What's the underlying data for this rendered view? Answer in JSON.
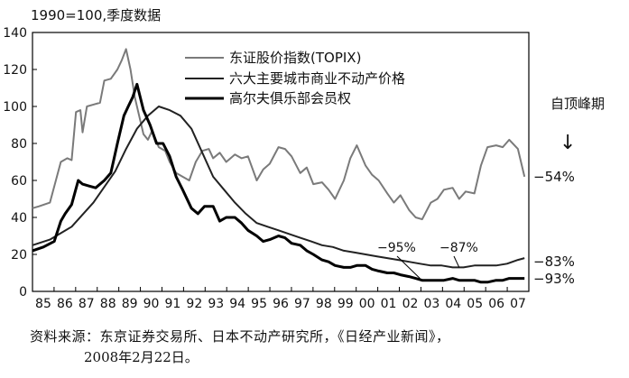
{
  "chart_data": {
    "type": "line",
    "title": "1990=100,季度数据",
    "xlabel": "",
    "ylabel": "",
    "x": [
      1984.7,
      1985.0,
      1985.5,
      1986.0,
      1986.3,
      1986.5,
      1986.7,
      1986.9,
      1987.0,
      1987.2,
      1987.5,
      1987.8,
      1988.0,
      1988.3,
      1988.6,
      1988.8,
      1989.0,
      1989.2,
      1989.4,
      1989.6,
      1989.8,
      1990.0,
      1990.2,
      1990.5,
      1990.8,
      1991.0,
      1991.3,
      1991.6,
      1991.9,
      1992.2,
      1992.5,
      1992.8,
      1993.0,
      1993.3,
      1993.6,
      1994.0,
      1994.3,
      1994.6,
      1995.0,
      1995.3,
      1995.6,
      1996.0,
      1996.3,
      1996.6,
      1997.0,
      1997.3,
      1997.6,
      1998.0,
      1998.3,
      1998.6,
      1999.0,
      1999.3,
      1999.6,
      2000.0,
      2000.3,
      2000.6,
      2001.0,
      2001.3,
      2001.6,
      2002.0,
      2002.3,
      2002.6,
      2003.0,
      2003.3,
      2003.6,
      2004.0,
      2004.3,
      2004.6,
      2005.0,
      2005.3,
      2005.6,
      2006.0,
      2006.3,
      2006.6,
      2007.0,
      2007.3
    ],
    "ylim": [
      0,
      140
    ],
    "xlim": [
      1984.7,
      2007.5
    ],
    "yticks": [
      "0",
      "20",
      "40",
      "60",
      "80",
      "100",
      "120",
      "140"
    ],
    "xticks": [
      "85",
      "86",
      "87",
      "88",
      "89",
      "90",
      "91",
      "92",
      "93",
      "94",
      "95",
      "96",
      "97",
      "98",
      "99",
      "00",
      "01",
      "02",
      "03",
      "04",
      "05",
      "06",
      "07"
    ],
    "series": [
      {
        "name": "东证股价指数(TOPIX)",
        "color": "#7a7a7a",
        "width": 2,
        "x": [
          1984.7,
          1985.0,
          1985.5,
          1986.0,
          1986.3,
          1986.5,
          1986.7,
          1986.9,
          1987.0,
          1987.2,
          1987.5,
          1987.8,
          1988.0,
          1988.3,
          1988.6,
          1988.8,
          1989.0,
          1989.2,
          1989.4,
          1989.6,
          1989.8,
          1990.0,
          1990.2,
          1990.5,
          1990.8,
          1991.0,
          1991.3,
          1991.6,
          1991.9,
          1992.2,
          1992.5,
          1992.8,
          1993.0,
          1993.3,
          1993.6,
          1994.0,
          1994.3,
          1994.6,
          1995.0,
          1995.3,
          1995.6,
          1996.0,
          1996.3,
          1996.6,
          1997.0,
          1997.3,
          1997.6,
          1998.0,
          1998.3,
          1998.6,
          1999.0,
          1999.3,
          1999.6,
          2000.0,
          2000.3,
          2000.6,
          2001.0,
          2001.3,
          2001.6,
          2002.0,
          2002.3,
          2002.6,
          2003.0,
          2003.3,
          2003.6,
          2004.0,
          2004.3,
          2004.6,
          2005.0,
          2005.3,
          2005.6,
          2006.0,
          2006.3,
          2006.6,
          2007.0,
          2007.3
        ],
        "values": [
          45,
          46,
          48,
          70,
          72,
          71,
          97,
          98,
          86,
          100,
          101,
          102,
          114,
          115,
          120,
          125,
          131,
          120,
          105,
          95,
          85,
          82,
          87,
          78,
          76,
          70,
          64,
          62,
          60,
          70,
          76,
          77,
          72,
          75,
          70,
          74,
          72,
          73,
          60,
          66,
          69,
          78,
          77,
          73,
          64,
          67,
          58,
          59,
          55,
          50,
          60,
          72,
          79,
          68,
          63,
          60,
          53,
          48,
          52,
          44,
          40,
          39,
          48,
          50,
          55,
          56,
          50,
          54,
          53,
          68,
          78,
          79,
          78,
          82,
          77,
          62
        ]
      },
      {
        "name": "六大主要城市商业不动产价格",
        "color": "#222222",
        "width": 2,
        "x": [
          1984.7,
          1985.5,
          1986.5,
          1987.5,
          1988.5,
          1989.0,
          1989.5,
          1990.0,
          1990.5,
          1991.0,
          1991.5,
          1992.0,
          1992.5,
          1993.0,
          1993.5,
          1994.0,
          1994.5,
          1995.0,
          1995.5,
          1996.0,
          1996.5,
          1997.0,
          1997.5,
          1998.0,
          1998.5,
          1999.0,
          1999.5,
          2000.0,
          2000.5,
          2001.0,
          2001.5,
          2002.0,
          2002.5,
          2003.0,
          2003.5,
          2004.0,
          2004.5,
          2005.0,
          2005.5,
          2006.0,
          2006.5,
          2007.0,
          2007.3
        ],
        "values": [
          25,
          28,
          35,
          48,
          65,
          77,
          88,
          95,
          100,
          98,
          95,
          88,
          75,
          62,
          55,
          48,
          42,
          37,
          35,
          33,
          31,
          29,
          27,
          25,
          24,
          22,
          21,
          20,
          19,
          18,
          17,
          16,
          15,
          14,
          14,
          13,
          13,
          14,
          14,
          14,
          15,
          17,
          18
        ]
      },
      {
        "name": "高尔夫俱乐部会员权",
        "color": "#000000",
        "width": 3,
        "x": [
          1984.7,
          1985.2,
          1985.7,
          1986.0,
          1986.2,
          1986.5,
          1986.8,
          1987.0,
          1987.3,
          1987.6,
          1988.0,
          1988.3,
          1988.6,
          1988.9,
          1989.1,
          1989.3,
          1989.5,
          1989.8,
          1990.1,
          1990.4,
          1990.7,
          1991.0,
          1991.3,
          1991.6,
          1992.0,
          1992.3,
          1992.6,
          1993.0,
          1993.3,
          1993.6,
          1994.0,
          1994.3,
          1994.6,
          1995.0,
          1995.3,
          1995.6,
          1996.0,
          1996.3,
          1996.6,
          1997.0,
          1997.3,
          1997.6,
          1998.0,
          1998.3,
          1998.6,
          1999.0,
          1999.3,
          1999.6,
          2000.0,
          2000.3,
          2000.6,
          2001.0,
          2001.3,
          2001.6,
          2002.0,
          2002.3,
          2002.6,
          2003.0,
          2003.3,
          2003.6,
          2004.0,
          2004.3,
          2004.6,
          2005.0,
          2005.3,
          2005.6,
          2006.0,
          2006.3,
          2006.6,
          2007.0,
          2007.3
        ],
        "values": [
          22,
          24,
          27,
          38,
          42,
          47,
          60,
          58,
          57,
          56,
          60,
          64,
          80,
          95,
          100,
          105,
          112,
          98,
          90,
          80,
          80,
          73,
          62,
          55,
          45,
          42,
          46,
          46,
          38,
          40,
          40,
          37,
          33,
          30,
          27,
          28,
          30,
          29,
          26,
          25,
          22,
          20,
          17,
          16,
          14,
          13,
          13,
          14,
          14,
          12,
          11,
          10,
          10,
          9,
          8,
          7,
          6,
          6,
          6,
          6,
          7,
          6,
          6,
          6,
          5,
          5,
          6,
          6,
          7,
          7,
          7
        ]
      }
    ],
    "legend_position": "top-center",
    "annotations": [
      {
        "label": "自顶峰期",
        "position": "right-margin"
      },
      {
        "label": "↓",
        "position": "right-margin"
      },
      {
        "label": "−54%",
        "series": 0,
        "position": "right-margin"
      },
      {
        "label": "−83%",
        "series": 1,
        "position": "right-margin"
      },
      {
        "label": "−93%",
        "series": 2,
        "position": "right-margin"
      },
      {
        "label": "−95%",
        "target_x": 2002.5,
        "target_y": 7
      },
      {
        "label": "−87%",
        "target_x": 2004.3,
        "target_y": 13
      }
    ],
    "source_line1": "资料来源：东京证券交易所、日本不动产研究所，《日经产业新闻》，",
    "source_line2": "2008年2月22日。"
  }
}
